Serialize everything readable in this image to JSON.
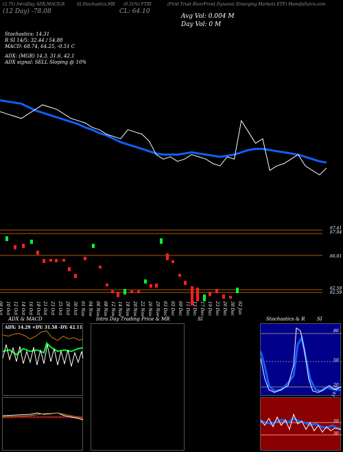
{
  "header": {
    "line1_left": "(2.75) IntraDay ADX,MACD,R",
    "line1_mid": "SI,Stochastics,MR",
    "line1_mid2": "(0.31%) FTRI",
    "line1_right": "(First Trust RiverFront Dynamic Emerging Markets ETF) ManafaSutra.com",
    "line2_left": "(12 Day) -78.08",
    "line2_mid": "CL: 64.10",
    "line2_right": "Avg Vol: 0.004 M",
    "day_vol": "Day Vol: 0 M",
    "stoch": "Stochastics: 14.31",
    "rsi": "R          SI 14/5: 32.44   / 54.88",
    "macd": "MACD: 68.74, 64.25, -0.51 C",
    "adx": "ADX:                    (MGR) 14.3, 31.6, 42.1",
    "adx_signal": "ADX  signal: SELL  Sloping @ 10%"
  },
  "candle_axis": {
    "labels": [
      "67.41",
      "67.04",
      "66.01",
      "62.59",
      "62.59"
    ]
  },
  "date_labels": [
    "08 Oct",
    "10 Oct",
    "12 Oct",
    "14 Oct",
    "16 Oct",
    "18 Oct",
    "21 Oct",
    "23 Oct",
    "25 Oct",
    "28 Oct",
    "30 Oct",
    "01 Nov",
    "04 Nov",
    "06 Nov",
    "08 Nov",
    "12 Nov",
    "14 Nov",
    "18 Nov",
    "20 Nov",
    "22 Nov",
    "26 Nov",
    "29 Nov",
    "03 Dec",
    "05 Dec",
    "09 Dec",
    "11 Dec",
    "13 Dec",
    "17 Dec",
    "19 Dec",
    "23 Dec",
    "26 Dec",
    "30 Dec",
    "02 Jan"
  ],
  "panels": {
    "adx_title": "ADX  & MACD",
    "adx_values": "ADX: 14.29  +DY: 31.58  -DY: 42.11",
    "intraday_title": "Intra  Day Trading Price  & MR",
    "intraday_title_si": "SI",
    "stoch_title": "Stochastics & R",
    "stoch_title_si": "SI",
    "stoch_axis": [
      "80",
      "50",
      "20"
    ],
    "stoch_mark": "14.31",
    "rsi_axis": [
      "50",
      "30"
    ]
  },
  "colors": {
    "price_line": "#ffffff",
    "ma_line": "#1060ff",
    "up": "#00ff30",
    "down": "#ff2020",
    "axis_line": "#b35a00",
    "stoch_bg": "#00008b",
    "rsi_bg": "#8b0000"
  },
  "chart_data": {
    "type": "candlestick",
    "price_line": [
      62.0,
      61.9,
      61.8,
      61.7,
      61.9,
      62.1,
      62.3,
      62.2,
      62.1,
      61.9,
      61.7,
      61.6,
      61.5,
      61.3,
      61.2,
      61.0,
      60.9,
      60.8,
      61.2,
      61.1,
      61.0,
      60.7,
      60.1,
      59.9,
      60.0,
      59.8,
      59.9,
      60.1,
      60.0,
      59.9,
      59.7,
      59.6,
      60.0,
      59.9,
      61.6,
      61.1,
      60.6,
      60.8,
      59.4,
      59.6,
      59.7,
      59.9,
      60.1,
      59.6,
      59.4,
      59.2,
      59.5
    ],
    "moving_average": [
      62.5,
      62.45,
      62.4,
      62.35,
      62.2,
      62.05,
      61.95,
      61.85,
      61.75,
      61.65,
      61.55,
      61.45,
      61.3,
      61.2,
      61.05,
      60.95,
      60.8,
      60.65,
      60.55,
      60.45,
      60.35,
      60.25,
      60.15,
      60.1,
      60.1,
      60.1,
      60.15,
      60.2,
      60.15,
      60.1,
      60.05,
      60.0,
      60.05,
      60.1,
      60.2,
      60.3,
      60.35,
      60.35,
      60.3,
      60.25,
      60.2,
      60.15,
      60.1,
      60.0,
      59.9,
      59.8,
      59.75
    ]
  }
}
